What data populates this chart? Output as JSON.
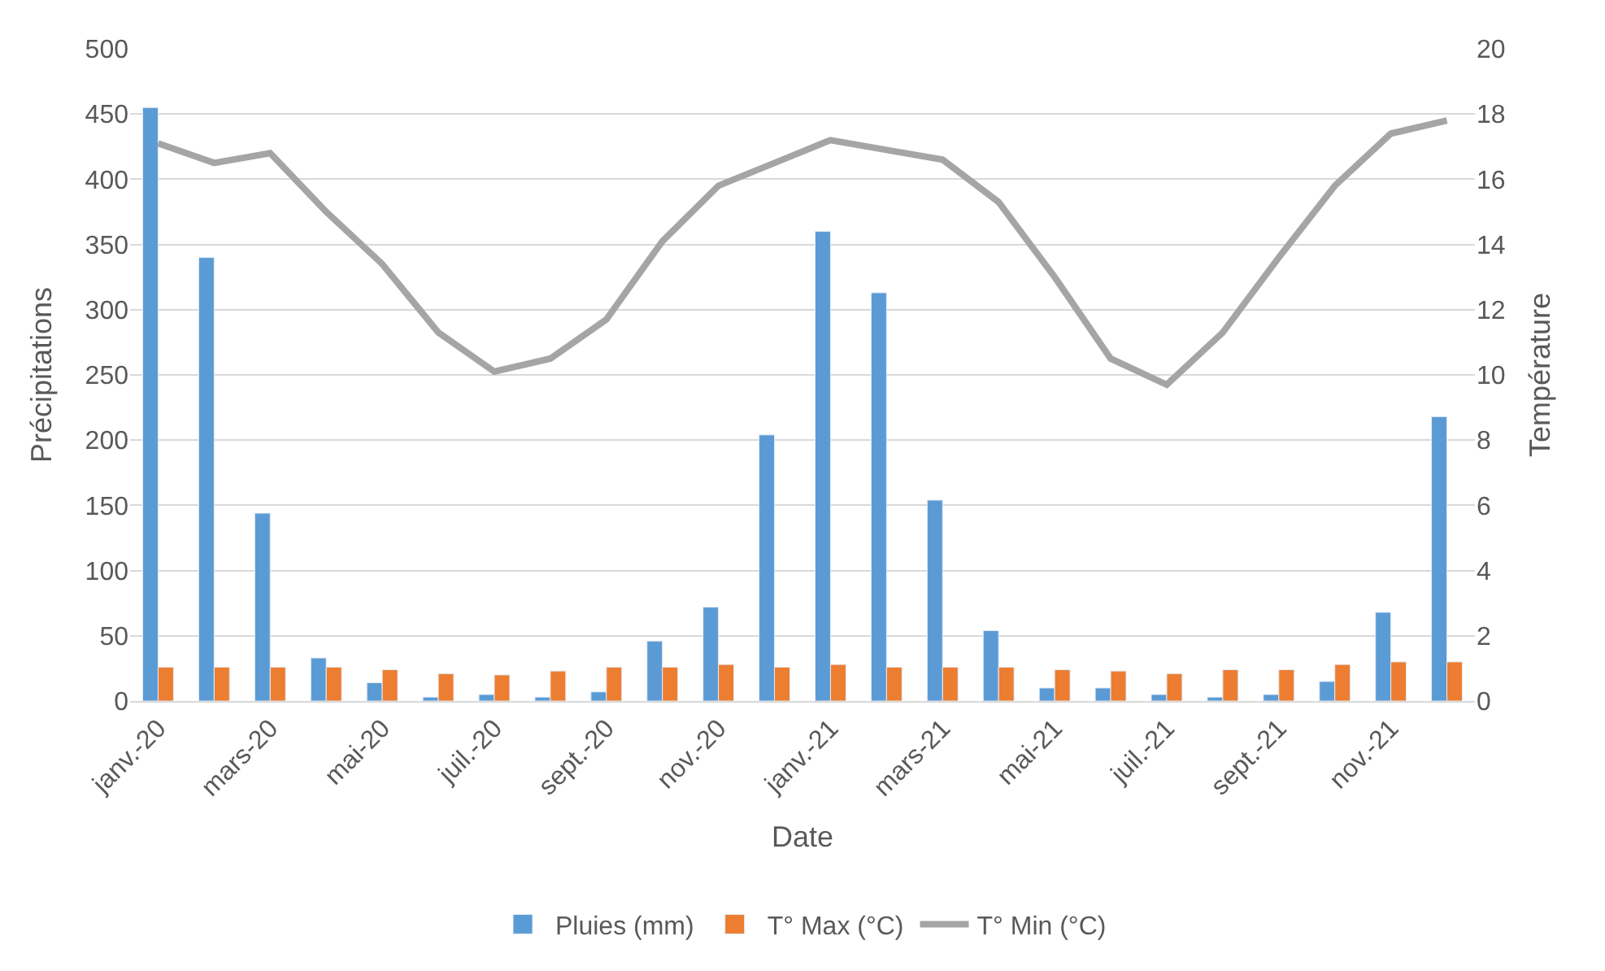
{
  "chart_data": {
    "type": "bar",
    "xlabel": "Date",
    "ylabel": "Précipitations",
    "y2label": "Température",
    "categories": [
      "janv.-20",
      null,
      "mars-20",
      null,
      "mai-20",
      null,
      "juil.-20",
      null,
      "sept.-20",
      null,
      "nov.-20",
      null,
      "janv.-21",
      null,
      "mars-21",
      null,
      "mai-21",
      null,
      "juil.-21",
      null,
      "sept.-21",
      null,
      "nov.-21",
      null
    ],
    "series": [
      {
        "name": "Pluies (mm)",
        "color": "#5b9bd5",
        "values": [
          455,
          340,
          144,
          33,
          14,
          3,
          5,
          3,
          7,
          46,
          72,
          204,
          360,
          313,
          154,
          54,
          10,
          10,
          5,
          3,
          5,
          15,
          68,
          218
        ]
      },
      {
        "name": "T° Max (°C)",
        "color": "#ed7d31",
        "values": [
          26,
          26,
          26,
          26,
          24,
          21,
          20,
          23,
          26,
          26,
          28,
          26,
          28,
          26,
          26,
          26,
          24,
          23,
          21,
          24,
          24,
          28,
          30,
          30
        ]
      },
      {
        "name": "T° Min (°C)",
        "type": "line",
        "axis": "y2",
        "color": "#a5a5a5",
        "values": [
          17.1,
          16.5,
          16.8,
          15.0,
          13.4,
          11.3,
          10.1,
          10.5,
          11.7,
          14.1,
          15.8,
          16.5,
          17.2,
          16.9,
          16.6,
          15.3,
          13.0,
          10.5,
          9.7,
          11.3,
          13.6,
          15.8,
          17.4,
          17.8
        ]
      }
    ],
    "ylim": [
      0,
      500
    ],
    "yticks": [
      0,
      50,
      100,
      150,
      200,
      250,
      300,
      350,
      400,
      450,
      500
    ],
    "y2lim": [
      0,
      20
    ],
    "y2ticks": [
      0,
      2,
      4,
      6,
      8,
      10,
      12,
      14,
      16,
      18,
      20
    ],
    "grid": "y",
    "legend": "bottom",
    "marker": "none",
    "line_style": "solid"
  }
}
